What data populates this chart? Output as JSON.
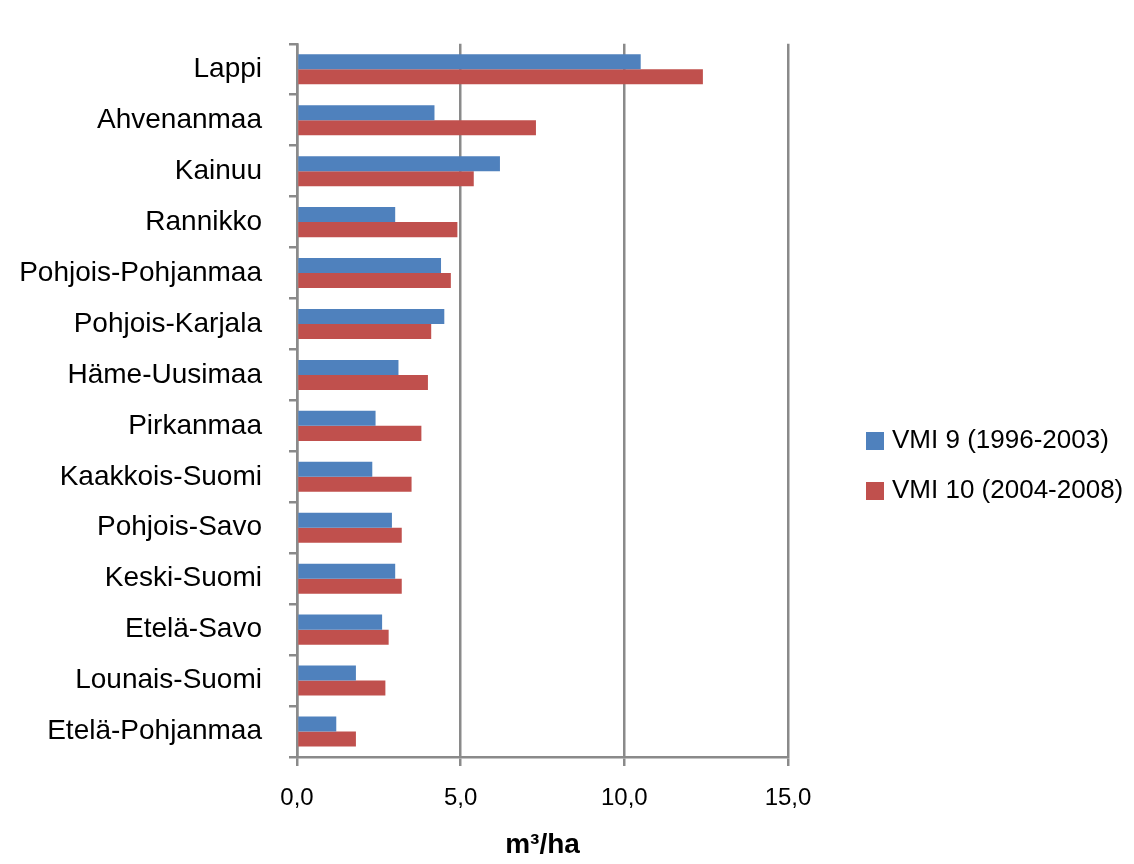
{
  "chart_data": {
    "type": "bar",
    "orientation": "horizontal",
    "categories": [
      "Lappi",
      "Ahvenanmaa",
      "Kainuu",
      "Rannikko",
      "Pohjois-Pohjanmaa",
      "Pohjois-Karjala",
      "Häme-Uusimaa",
      "Pirkanmaa",
      "Kaakkois-Suomi",
      "Pohjois-Savo",
      "Keski-Suomi",
      "Etelä-Savo",
      "Lounais-Suomi",
      "Etelä-Pohjanmaa"
    ],
    "series": [
      {
        "name": "VMI 9 (1996-2003)",
        "color": "#4f81bd",
        "values": [
          10.5,
          4.2,
          6.2,
          3.0,
          4.4,
          4.5,
          3.1,
          2.4,
          2.3,
          2.9,
          3.0,
          2.6,
          1.8,
          1.2
        ]
      },
      {
        "name": "VMI 10 (2004-2008)",
        "color": "#c0504d",
        "values": [
          12.4,
          7.3,
          5.4,
          4.9,
          4.7,
          4.1,
          4.0,
          3.8,
          3.5,
          3.2,
          3.2,
          2.8,
          2.7,
          1.8
        ]
      }
    ],
    "xlim": [
      0,
      15
    ],
    "xticks": [
      {
        "value": 0,
        "label": "0,0"
      },
      {
        "value": 5,
        "label": "5,0"
      },
      {
        "value": 10,
        "label": "10,0"
      },
      {
        "value": 15,
        "label": "15,0"
      }
    ],
    "xlabel": "m³/ha",
    "grid": "x",
    "legend": "right"
  }
}
